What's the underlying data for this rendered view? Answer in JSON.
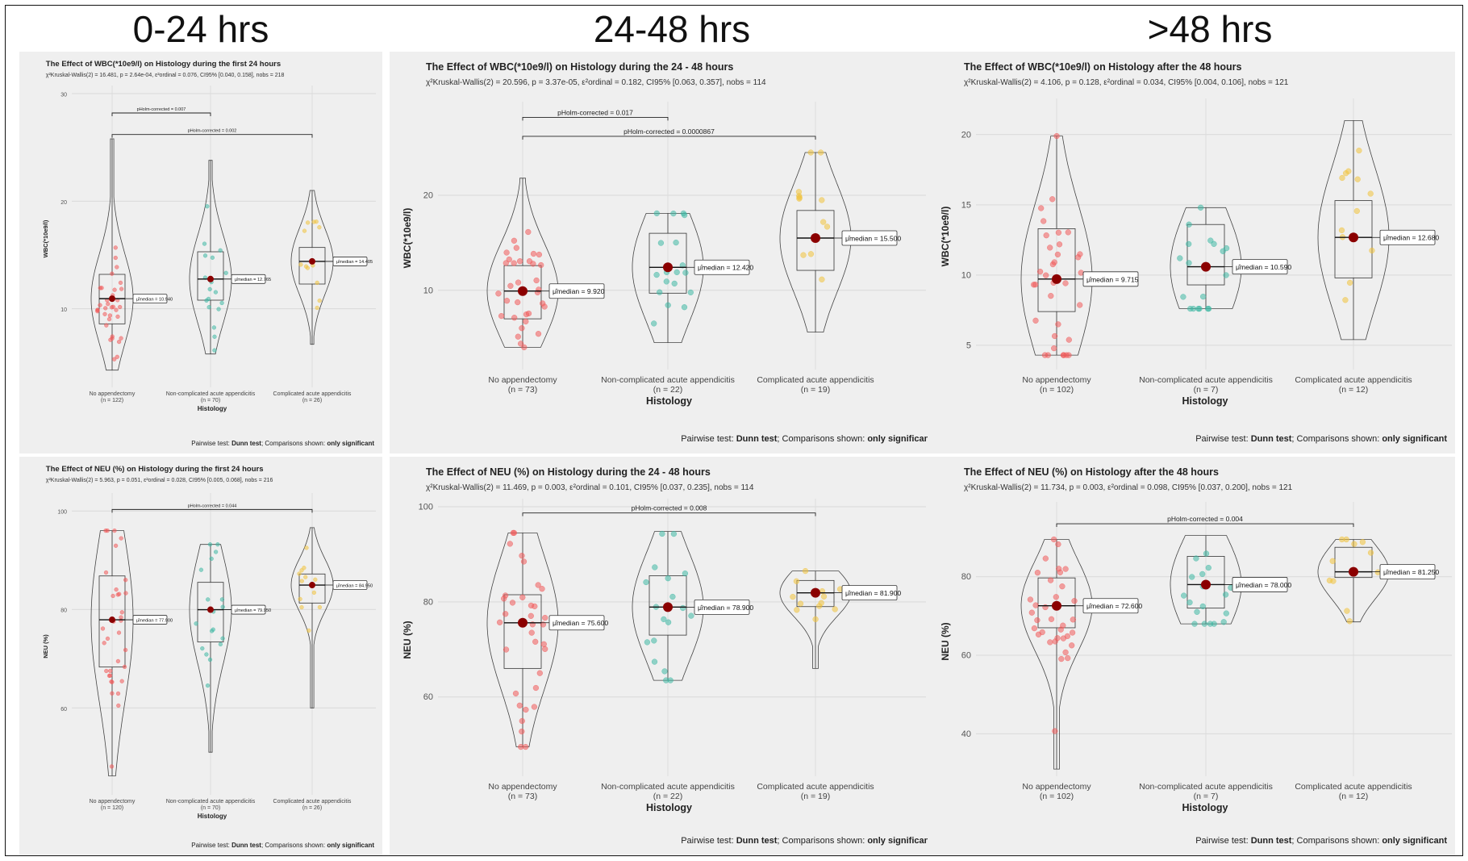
{
  "columns": [
    "0-24 hrs",
    "24-48 hrs",
    ">48 hrs"
  ],
  "style": {
    "panel_bg": "#efefef",
    "group_colors": [
      "#f05a5a",
      "#3fb8a4",
      "#f0c23c"
    ],
    "median_point": "#8b0000"
  },
  "chart_data": [
    {
      "id": "wbc-0-24",
      "type": "violin",
      "title": "The Effect of WBC(*10e9/l) on Histology during the first 24 hours",
      "subtitle": "χ²Kruskal-Wallis(2) = 16.481, p = 2.64e-04, ε²ordinal = 0.076, CI95% [0.040, 0.158], nobs = 218",
      "xlabel": "Histology",
      "ylabel": "WBC(*10e9/l)",
      "ylim": [
        3,
        30
      ],
      "yticks": [
        10,
        20,
        30
      ],
      "grid": true,
      "categories": [
        "No appendectomy",
        "Non-complicated acute appendicitis",
        "Complicated acute appendicitis"
      ],
      "n_labels": [
        "(n = 122)",
        "(n = 70)",
        "(n = 26)"
      ],
      "groups": [
        {
          "min": 4.3,
          "q1": 8.6,
          "median": 10.94,
          "q3": 13.2,
          "max": 25.8,
          "label": "μ̂median = 10.940"
        },
        {
          "min": 5.8,
          "q1": 10.8,
          "median": 12.765,
          "q3": 15.3,
          "max": 23.8,
          "label": "μ̂median = 12.765"
        },
        {
          "min": 6.7,
          "q1": 12.3,
          "median": 14.405,
          "q3": 15.7,
          "max": 21.0,
          "label": "μ̂median = 14.405"
        }
      ],
      "comparisons": [
        {
          "pair": [
            0,
            1
          ],
          "label": "pHolm-corrected = 0.007",
          "y": 28.2
        },
        {
          "pair": [
            0,
            2
          ],
          "label": "pHolm-corrected = 0.002",
          "y": 26.2
        }
      ],
      "footer_prefix": "Pairwise test: ",
      "footer_test": "Dunn test",
      "footer_mid": "; Comparisons shown: ",
      "footer_shown": "only significant"
    },
    {
      "id": "wbc-24-48",
      "type": "violin",
      "title": "The Effect of WBC(*10e9/l) on Histology during the 24 - 48 hours",
      "subtitle": "χ²Kruskal-Wallis(2) = 20.596, p = 3.37e-05, ε²ordinal = 0.182, CI95% [0.063, 0.357], nobs = 114",
      "xlabel": "Histology",
      "ylabel": "WBC(*10e9/l)",
      "ylim": [
        2,
        29
      ],
      "yticks": [
        10,
        20
      ],
      "grid": true,
      "categories": [
        "No appendectomy",
        "Non-complicated acute appendicitis",
        "Complicated acute appendicitis"
      ],
      "n_labels": [
        "(n = 73)",
        "(n = 22)",
        "(n = 19)"
      ],
      "groups": [
        {
          "min": 4.0,
          "q1": 7.0,
          "median": 9.92,
          "q3": 12.6,
          "max": 21.8,
          "label": "μ̂median = 9.920"
        },
        {
          "min": 4.5,
          "q1": 9.7,
          "median": 12.42,
          "q3": 16.0,
          "max": 18.1,
          "label": "μ̂median = 12.420"
        },
        {
          "min": 5.6,
          "q1": 12.1,
          "median": 15.5,
          "q3": 18.4,
          "max": 24.5,
          "label": "μ̂median = 15.500"
        }
      ],
      "comparisons": [
        {
          "pair": [
            0,
            1
          ],
          "label": "pHolm-corrected = 0.017",
          "y": 28.2
        },
        {
          "pair": [
            0,
            2
          ],
          "label": "pHolm-corrected = 0.0000867",
          "y": 26.2
        }
      ],
      "footer_prefix": "Pairwise test: ",
      "footer_test": "Dunn test",
      "footer_mid": "; Comparisons shown: ",
      "footer_shown": "only significant"
    },
    {
      "id": "wbc-48",
      "type": "violin",
      "title": "The Effect of WBC(*10e9/l) on Histology after the 48 hours",
      "subtitle": "χ²Kruskal-Wallis(2) = 4.106, p = 0.128, ε²ordinal = 0.034, CI95% [0.004, 0.106], nobs = 121",
      "xlabel": "Histology",
      "ylabel": "WBC(*10e9/l)",
      "ylim": [
        3.5,
        22
      ],
      "yticks": [
        5,
        10,
        15,
        20
      ],
      "grid": true,
      "categories": [
        "No appendectomy",
        "Non-complicated acute appendicitis",
        "Complicated acute appendicitis"
      ],
      "n_labels": [
        "(n = 102)",
        "(n = 7)",
        "(n = 12)"
      ],
      "groups": [
        {
          "min": 4.3,
          "q1": 7.4,
          "median": 9.715,
          "q3": 13.3,
          "max": 19.9,
          "label": "μ̂median = 9.715"
        },
        {
          "min": 7.6,
          "q1": 9.3,
          "median": 10.59,
          "q3": 13.6,
          "max": 14.8,
          "label": "μ̂median = 10.590"
        },
        {
          "min": 5.4,
          "q1": 9.8,
          "median": 12.68,
          "q3": 15.3,
          "max": 21.0,
          "label": "μ̂median = 12.680"
        }
      ],
      "comparisons": [],
      "footer_prefix": "Pairwise test: ",
      "footer_test": "Dunn test",
      "footer_mid": "; Comparisons shown: ",
      "footer_shown": "only significant"
    },
    {
      "id": "neu-0-24",
      "type": "violin",
      "title": "The Effect of NEU (%) on Histology during the first 24 hours",
      "subtitle": "χ²Kruskal-Wallis(2) = 5.963, p = 0.051, ε²ordinal = 0.028, CI95% [0.005, 0.068], nobs = 216",
      "xlabel": "Histology",
      "ylabel": "NEU (%)",
      "ylim": [
        43,
        102
      ],
      "yticks": [
        60,
        80,
        100
      ],
      "grid": true,
      "categories": [
        "No appendectomy",
        "Non-complicated acute appendicitis",
        "Complicated acute appendicitis"
      ],
      "n_labels": [
        "(n = 120)",
        "(n = 70)",
        "(n = 26)"
      ],
      "groups": [
        {
          "min": 46.2,
          "q1": 68.3,
          "median": 77.9,
          "q3": 86.8,
          "max": 96.0,
          "label": "μ̂median = 77.900"
        },
        {
          "min": 51.0,
          "q1": 73.4,
          "median": 79.95,
          "q3": 85.5,
          "max": 93.2,
          "label": "μ̂median = 79.950"
        },
        {
          "min": 60.0,
          "q1": 81.3,
          "median": 84.95,
          "q3": 87.2,
          "max": 96.6,
          "label": "μ̂median = 84.950"
        }
      ],
      "comparisons": [
        {
          "pair": [
            0,
            2
          ],
          "label": "pHolm-corrected = 0.044",
          "y": 100.3
        }
      ],
      "footer_prefix": "Pairwise test: ",
      "footer_test": "Dunn test",
      "footer_mid": "; Comparisons shown: ",
      "footer_shown": "only significant"
    },
    {
      "id": "neu-24-48",
      "type": "violin",
      "title": "The Effect of NEU (%) on Histology during the 24 - 48 hours",
      "subtitle": "χ²Kruskal-Wallis(2) = 11.469, p = 0.003, ε²ordinal = 0.101, CI95% [0.037, 0.235], nobs = 114",
      "xlabel": "Histology",
      "ylabel": "NEU (%)",
      "ylim": [
        44,
        100
      ],
      "yticks": [
        60,
        80,
        100
      ],
      "grid": true,
      "categories": [
        "No appendectomy",
        "Non-complicated acute appendicitis",
        "Complicated acute appendicitis"
      ],
      "n_labels": [
        "(n = 73)",
        "(n = 22)",
        "(n = 19)"
      ],
      "groups": [
        {
          "min": 49.5,
          "q1": 66.0,
          "median": 75.6,
          "q3": 81.5,
          "max": 94.5,
          "label": "μ̂median = 75.600"
        },
        {
          "min": 63.5,
          "q1": 73.0,
          "median": 78.9,
          "q3": 85.5,
          "max": 94.8,
          "label": "μ̂median = 78.900"
        },
        {
          "min": 66.0,
          "q1": 79.0,
          "median": 81.9,
          "q3": 84.5,
          "max": 86.5,
          "label": "μ̂median = 81.900"
        }
      ],
      "comparisons": [
        {
          "pair": [
            0,
            2
          ],
          "label": "pHolm-corrected = 0.008",
          "y": 98.7
        }
      ],
      "footer_prefix": "Pairwise test: ",
      "footer_test": "Dunn test",
      "footer_mid": "; Comparisons shown: ",
      "footer_shown": "only significant"
    },
    {
      "id": "neu-48",
      "type": "violin",
      "title": "The Effect of NEU (%) on Histology after the 48 hours",
      "subtitle": "χ²Kruskal-Wallis(2) = 11.734, p = 0.003, ε²ordinal = 0.098, CI95% [0.037, 0.200], nobs = 121",
      "xlabel": "Histology",
      "ylabel": "NEU (%)",
      "ylim": [
        30,
        97
      ],
      "yticks": [
        40,
        60,
        80
      ],
      "grid": true,
      "categories": [
        "No appendectomy",
        "Non-complicated acute appendicitis",
        "Complicated acute appendicitis"
      ],
      "n_labels": [
        "(n = 102)",
        "(n = 7)",
        "(n = 12)"
      ],
      "groups": [
        {
          "min": 31.0,
          "q1": 67.0,
          "median": 72.6,
          "q3": 79.7,
          "max": 89.5,
          "label": "μ̂median = 72.600"
        },
        {
          "min": 68.0,
          "q1": 72.0,
          "median": 78.0,
          "q3": 85.2,
          "max": 90.5,
          "label": "μ̂median = 78.000"
        },
        {
          "min": 68.5,
          "q1": 79.8,
          "median": 81.25,
          "q3": 87.5,
          "max": 89.5,
          "label": "μ̂median = 81.250"
        }
      ],
      "comparisons": [
        {
          "pair": [
            0,
            2
          ],
          "label": "pHolm-corrected = 0.004",
          "y": 93.5
        }
      ],
      "footer_prefix": "Pairwise test: ",
      "footer_test": "Dunn test",
      "footer_mid": "; Comparisons shown: ",
      "footer_shown": "only significant"
    }
  ]
}
